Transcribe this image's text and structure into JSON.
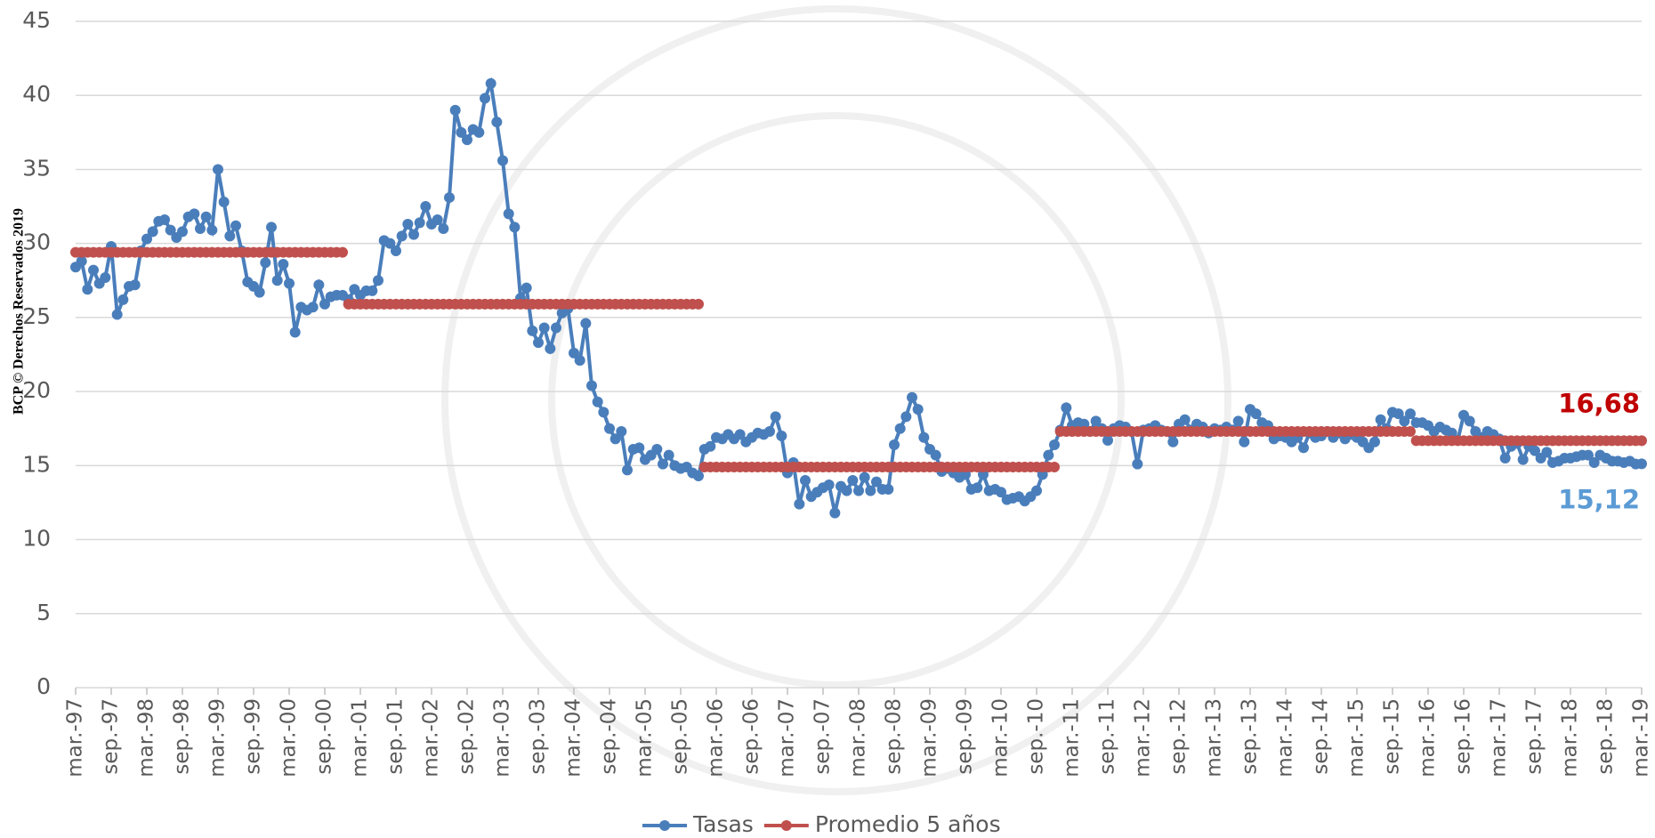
{
  "chart_data": {
    "type": "line",
    "watermark": "BCP © Derechos Reservados 2019",
    "categories": [
      "mar.-97",
      null,
      null,
      null,
      null,
      null,
      "sep.-97",
      null,
      null,
      null,
      null,
      null,
      "mar.-98",
      null,
      null,
      null,
      null,
      null,
      "sep.-98",
      null,
      null,
      null,
      null,
      null,
      "mar.-99",
      null,
      null,
      null,
      null,
      null,
      "sep.-99",
      null,
      null,
      null,
      null,
      null,
      "mar.-00",
      null,
      null,
      null,
      null,
      null,
      "sep.-00",
      null,
      null,
      null,
      null,
      null,
      "mar.-01",
      null,
      null,
      null,
      null,
      null,
      "sep.-01",
      null,
      null,
      null,
      null,
      null,
      "mar.-02",
      null,
      null,
      null,
      null,
      null,
      "sep.-02",
      null,
      null,
      null,
      null,
      null,
      "mar.-03",
      null,
      null,
      null,
      null,
      null,
      "sep.-03",
      null,
      null,
      null,
      null,
      null,
      "mar.-04",
      null,
      null,
      null,
      null,
      null,
      "sep.-04",
      null,
      null,
      null,
      null,
      null,
      "mar.-05",
      null,
      null,
      null,
      null,
      null,
      "sep.-05",
      null,
      null,
      null,
      null,
      null,
      "mar.-06",
      null,
      null,
      null,
      null,
      null,
      "sep.-06",
      null,
      null,
      null,
      null,
      null,
      "mar.-07",
      null,
      null,
      null,
      null,
      null,
      "sep.-07",
      null,
      null,
      null,
      null,
      null,
      "mar.-08",
      null,
      null,
      null,
      null,
      null,
      "sep.-08",
      null,
      null,
      null,
      null,
      null,
      "mar.-09",
      null,
      null,
      null,
      null,
      null,
      "sep.-09",
      null,
      null,
      null,
      null,
      null,
      "mar.-10",
      null,
      null,
      null,
      null,
      null,
      "sep.-10",
      null,
      null,
      null,
      null,
      null,
      "mar.-11",
      null,
      null,
      null,
      null,
      null,
      "sep.-11",
      null,
      null,
      null,
      null,
      null,
      "mar.-12",
      null,
      null,
      null,
      null,
      null,
      "sep.-12",
      null,
      null,
      null,
      null,
      null,
      "mar.-13",
      null,
      null,
      null,
      null,
      null,
      "sep.-13",
      null,
      null,
      null,
      null,
      null,
      "mar.-14",
      null,
      null,
      null,
      null,
      null,
      "sep.-14",
      null,
      null,
      null,
      null,
      null,
      "mar.-15",
      null,
      null,
      null,
      null,
      null,
      "sep.-15",
      null,
      null,
      null,
      null,
      null,
      "mar.-16",
      null,
      null,
      null,
      null,
      null,
      "sep.-16",
      null,
      null,
      null,
      null,
      null,
      "mar.-17",
      null,
      null,
      null,
      null,
      null,
      "sep.-17",
      null,
      null,
      null,
      null,
      null,
      "mar.-18",
      null,
      null,
      null,
      null,
      null,
      "sep.-18",
      null,
      null,
      null,
      null,
      null,
      "mar.-19"
    ],
    "series": [
      {
        "name": "Tasas",
        "color": "#4a7ebb",
        "values": [
          28.4,
          28.8,
          26.9,
          28.2,
          27.3,
          27.7,
          29.8,
          25.2,
          26.2,
          27.1,
          27.2,
          29.5,
          30.3,
          30.8,
          31.5,
          31.6,
          30.9,
          30.4,
          30.8,
          31.8,
          32.0,
          31.0,
          31.8,
          30.9,
          35.0,
          32.8,
          30.5,
          31.2,
          29.5,
          27.4,
          27.1,
          26.7,
          28.7,
          31.1,
          27.5,
          28.6,
          27.3,
          24.0,
          25.7,
          25.5,
          25.7,
          27.2,
          25.9,
          26.4,
          26.5,
          26.5,
          26.2,
          26.9,
          26.5,
          26.8,
          26.8,
          27.5,
          30.2,
          30.0,
          29.5,
          30.5,
          31.3,
          30.6,
          31.4,
          32.5,
          31.3,
          31.6,
          31.0,
          33.1,
          39.0,
          37.5,
          37.0,
          37.7,
          37.5,
          39.8,
          40.8,
          38.2,
          35.6,
          32.0,
          31.1,
          26.3,
          27.0,
          24.1,
          23.3,
          24.3,
          22.9,
          24.3,
          25.3,
          25.6,
          22.6,
          22.1,
          24.6,
          20.4,
          19.3,
          18.6,
          17.5,
          16.8,
          17.3,
          14.7,
          16.1,
          16.2,
          15.4,
          15.7,
          16.1,
          15.1,
          15.7,
          15.0,
          14.8,
          14.9,
          14.5,
          14.3,
          16.1,
          16.3,
          16.9,
          16.8,
          17.1,
          16.8,
          17.1,
          16.6,
          16.9,
          17.2,
          17.1,
          17.3,
          18.3,
          17.0,
          14.5,
          15.2,
          12.4,
          14.0,
          12.9,
          13.2,
          13.5,
          13.7,
          11.8,
          13.6,
          13.3,
          14.0,
          13.3,
          14.2,
          13.3,
          13.9,
          13.4,
          13.4,
          16.4,
          17.5,
          18.3,
          19.6,
          18.8,
          16.9,
          16.1,
          15.7,
          14.6,
          14.8,
          14.5,
          14.2,
          14.4,
          13.4,
          13.5,
          14.4,
          13.3,
          13.4,
          13.2,
          12.7,
          12.8,
          12.9,
          12.6,
          12.9,
          13.3,
          14.4,
          15.7,
          16.4,
          17.4,
          18.9,
          17.7,
          17.9,
          17.8,
          17.3,
          18.0,
          17.5,
          16.7,
          17.5,
          17.7,
          17.6,
          17.3,
          15.1,
          17.4,
          17.5,
          17.7,
          17.4,
          17.3,
          16.6,
          17.8,
          18.1,
          17.4,
          17.8,
          17.6,
          17.2,
          17.5,
          17.4,
          17.6,
          17.4,
          18.0,
          16.6,
          18.8,
          18.5,
          17.9,
          17.7,
          16.8,
          17.0,
          16.9,
          16.6,
          16.9,
          16.2,
          17.2,
          16.9,
          17.0,
          17.3,
          16.9,
          17.2,
          16.8,
          17.1,
          16.9,
          16.6,
          16.2,
          16.6,
          18.1,
          17.5,
          18.6,
          18.5,
          18.0,
          18.5,
          17.9,
          17.9,
          17.7,
          17.3,
          17.6,
          17.4,
          17.2,
          16.7,
          18.4,
          18.0,
          17.3,
          16.9,
          17.3,
          17.1,
          16.8,
          15.5,
          16.3,
          16.5,
          15.4,
          16.3,
          16.0,
          15.5,
          15.9,
          15.2,
          15.3,
          15.5,
          15.5,
          15.6,
          15.7,
          15.7,
          15.2,
          15.7,
          15.5,
          15.3,
          15.3,
          15.2,
          15.3,
          15.1,
          15.12
        ]
      },
      {
        "name": "Promedio 5 años",
        "color": "#c0504d",
        "values": [
          29.4,
          29.4,
          29.4,
          29.4,
          29.4,
          29.4,
          29.4,
          29.4,
          29.4,
          29.4,
          29.4,
          29.4,
          29.4,
          29.4,
          29.4,
          29.4,
          29.4,
          29.4,
          29.4,
          29.4,
          29.4,
          29.4,
          29.4,
          29.4,
          29.4,
          29.4,
          29.4,
          29.4,
          29.4,
          29.4,
          29.4,
          29.4,
          29.4,
          29.4,
          29.4,
          29.4,
          29.4,
          29.4,
          29.4,
          29.4,
          29.4,
          29.4,
          29.4,
          29.4,
          29.4,
          29.4,
          25.9,
          25.9,
          25.9,
          25.9,
          25.9,
          25.9,
          25.9,
          25.9,
          25.9,
          25.9,
          25.9,
          25.9,
          25.9,
          25.9,
          25.9,
          25.9,
          25.9,
          25.9,
          25.9,
          25.9,
          25.9,
          25.9,
          25.9,
          25.9,
          25.9,
          25.9,
          25.9,
          25.9,
          25.9,
          25.9,
          25.9,
          25.9,
          25.9,
          25.9,
          25.9,
          25.9,
          25.9,
          25.9,
          25.9,
          25.9,
          25.9,
          25.9,
          25.9,
          25.9,
          25.9,
          25.9,
          25.9,
          25.9,
          25.9,
          25.9,
          25.9,
          25.9,
          25.9,
          25.9,
          25.9,
          25.9,
          25.9,
          25.9,
          25.9,
          25.9,
          14.9,
          14.9,
          14.9,
          14.9,
          14.9,
          14.9,
          14.9,
          14.9,
          14.9,
          14.9,
          14.9,
          14.9,
          14.9,
          14.9,
          14.9,
          14.9,
          14.9,
          14.9,
          14.9,
          14.9,
          14.9,
          14.9,
          14.9,
          14.9,
          14.9,
          14.9,
          14.9,
          14.9,
          14.9,
          14.9,
          14.9,
          14.9,
          14.9,
          14.9,
          14.9,
          14.9,
          14.9,
          14.9,
          14.9,
          14.9,
          14.9,
          14.9,
          14.9,
          14.9,
          14.9,
          14.9,
          14.9,
          14.9,
          14.9,
          14.9,
          14.9,
          14.9,
          14.9,
          14.9,
          14.9,
          14.9,
          14.9,
          14.9,
          14.9,
          14.9,
          17.3,
          17.3,
          17.3,
          17.3,
          17.3,
          17.3,
          17.3,
          17.3,
          17.3,
          17.3,
          17.3,
          17.3,
          17.3,
          17.3,
          17.3,
          17.3,
          17.3,
          17.3,
          17.3,
          17.3,
          17.3,
          17.3,
          17.3,
          17.3,
          17.3,
          17.3,
          17.3,
          17.3,
          17.3,
          17.3,
          17.3,
          17.3,
          17.3,
          17.3,
          17.3,
          17.3,
          17.3,
          17.3,
          17.3,
          17.3,
          17.3,
          17.3,
          17.3,
          17.3,
          17.3,
          17.3,
          17.3,
          17.3,
          17.3,
          17.3,
          17.3,
          17.3,
          17.3,
          17.3,
          17.3,
          17.3,
          17.3,
          17.3,
          17.3,
          17.3,
          16.68,
          16.68,
          16.68,
          16.68,
          16.68,
          16.68,
          16.68,
          16.68,
          16.68,
          16.68,
          16.68,
          16.68,
          16.68,
          16.68,
          16.68,
          16.68,
          16.68,
          16.68,
          16.68,
          16.68,
          16.68,
          16.68,
          16.68,
          16.68,
          16.68,
          16.68,
          16.68,
          16.68,
          16.68,
          16.68,
          16.68,
          16.68,
          16.68,
          16.68,
          16.68,
          16.68,
          16.68,
          16.68,
          16.68
        ]
      }
    ],
    "annotations": [
      {
        "text": "15,12",
        "color": "#5b9bd5"
      },
      {
        "text": "16,68",
        "color": "#c00000"
      }
    ],
    "ylim": [
      0,
      45
    ],
    "yticks": [
      0,
      5,
      10,
      15,
      20,
      25,
      30,
      35,
      40,
      45
    ],
    "grid": true,
    "legend": "bottom"
  }
}
